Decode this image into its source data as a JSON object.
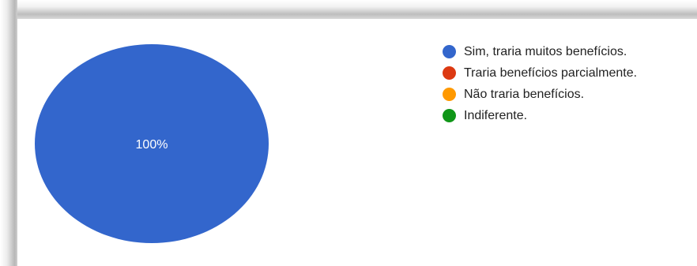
{
  "chart_data": {
    "type": "pie",
    "categories": [
      "Sim, traria muitos benefícios.",
      "Traria benefícios parcialmente.",
      "Não traria benefícios.",
      "Indiferente."
    ],
    "values": [
      100,
      0,
      0,
      0
    ],
    "slice_labels": [
      "100%",
      "",
      "",
      ""
    ],
    "colors": [
      "#3366cc",
      "#dc3912",
      "#ff9900",
      "#109618"
    ],
    "legend_position": "right"
  }
}
